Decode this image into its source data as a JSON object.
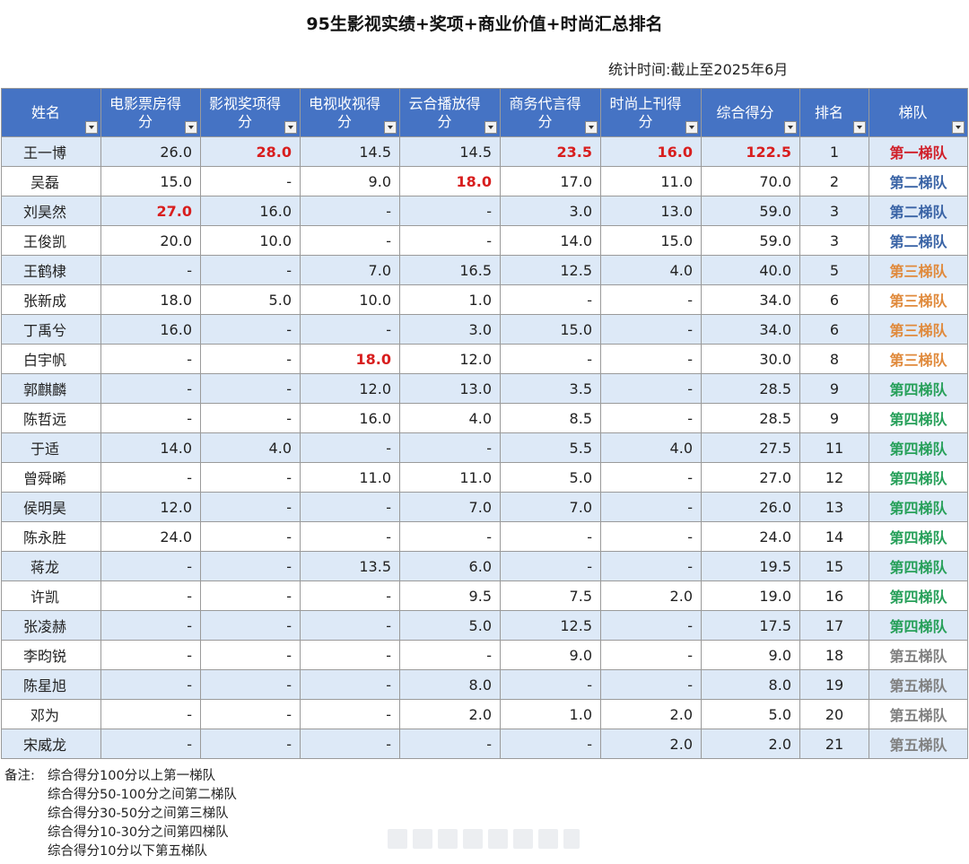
{
  "title": "95生影视实绩+奖项+商业价值+时尚汇总排名",
  "stat_time": "统计时间:截止至2025年6月",
  "headers": [
    "姓名",
    "电影票房得分",
    "影视奖项得分",
    "电视收视得分",
    "云合播放得分",
    "商务代言得分",
    "时尚上刊得分",
    "综合得分",
    "排名",
    "梯队"
  ],
  "colors": {
    "header_bg": "#4573c4",
    "stripe": "#dde9f7",
    "highlight": "#d81e1e",
    "tier1": "#d0202a",
    "tier2": "#3a64a6",
    "tier3": "#e08a3c",
    "tier4": "#27a05a",
    "tier5": "#808080"
  },
  "rows": [
    {
      "name": "王一博",
      "cells": [
        "26.0",
        "28.0",
        "14.5",
        "14.5",
        "23.5",
        "16.0",
        "122.5"
      ],
      "rank": "1",
      "tier": "第一梯队",
      "tier_level": 1,
      "bold": [
        1,
        4,
        5,
        6
      ]
    },
    {
      "name": "吴磊",
      "cells": [
        "15.0",
        "-",
        "9.0",
        "18.0",
        "17.0",
        "11.0",
        "70.0"
      ],
      "rank": "2",
      "tier": "第二梯队",
      "tier_level": 2,
      "bold": [
        3
      ]
    },
    {
      "name": "刘昊然",
      "cells": [
        "27.0",
        "16.0",
        "-",
        "-",
        "3.0",
        "13.0",
        "59.0"
      ],
      "rank": "3",
      "tier": "第二梯队",
      "tier_level": 2,
      "bold": [
        0
      ]
    },
    {
      "name": "王俊凯",
      "cells": [
        "20.0",
        "10.0",
        "-",
        "-",
        "14.0",
        "15.0",
        "59.0"
      ],
      "rank": "3",
      "tier": "第二梯队",
      "tier_level": 2,
      "bold": []
    },
    {
      "name": "王鹤棣",
      "cells": [
        "-",
        "-",
        "7.0",
        "16.5",
        "12.5",
        "4.0",
        "40.0"
      ],
      "rank": "5",
      "tier": "第三梯队",
      "tier_level": 3,
      "bold": []
    },
    {
      "name": "张新成",
      "cells": [
        "18.0",
        "5.0",
        "10.0",
        "1.0",
        "-",
        "-",
        "34.0"
      ],
      "rank": "6",
      "tier": "第三梯队",
      "tier_level": 3,
      "bold": []
    },
    {
      "name": "丁禹兮",
      "cells": [
        "16.0",
        "-",
        "-",
        "3.0",
        "15.0",
        "-",
        "34.0"
      ],
      "rank": "6",
      "tier": "第三梯队",
      "tier_level": 3,
      "bold": []
    },
    {
      "name": "白宇帆",
      "cells": [
        "-",
        "-",
        "18.0",
        "12.0",
        "-",
        "-",
        "30.0"
      ],
      "rank": "8",
      "tier": "第三梯队",
      "tier_level": 3,
      "bold": [
        2
      ]
    },
    {
      "name": "郭麒麟",
      "cells": [
        "-",
        "-",
        "12.0",
        "13.0",
        "3.5",
        "-",
        "28.5"
      ],
      "rank": "9",
      "tier": "第四梯队",
      "tier_level": 4,
      "bold": []
    },
    {
      "name": "陈哲远",
      "cells": [
        "-",
        "-",
        "16.0",
        "4.0",
        "8.5",
        "-",
        "28.5"
      ],
      "rank": "9",
      "tier": "第四梯队",
      "tier_level": 4,
      "bold": []
    },
    {
      "name": "于适",
      "cells": [
        "14.0",
        "4.0",
        "-",
        "-",
        "5.5",
        "4.0",
        "27.5"
      ],
      "rank": "11",
      "tier": "第四梯队",
      "tier_level": 4,
      "bold": []
    },
    {
      "name": "曾舜晞",
      "cells": [
        "-",
        "-",
        "11.0",
        "11.0",
        "5.0",
        "-",
        "27.0"
      ],
      "rank": "12",
      "tier": "第四梯队",
      "tier_level": 4,
      "bold": []
    },
    {
      "name": "侯明昊",
      "cells": [
        "12.0",
        "-",
        "-",
        "7.0",
        "7.0",
        "-",
        "26.0"
      ],
      "rank": "13",
      "tier": "第四梯队",
      "tier_level": 4,
      "bold": []
    },
    {
      "name": "陈永胜",
      "cells": [
        "24.0",
        "-",
        "-",
        "-",
        "-",
        "-",
        "24.0"
      ],
      "rank": "14",
      "tier": "第四梯队",
      "tier_level": 4,
      "bold": []
    },
    {
      "name": "蒋龙",
      "cells": [
        "-",
        "-",
        "13.5",
        "6.0",
        "-",
        "-",
        "19.5"
      ],
      "rank": "15",
      "tier": "第四梯队",
      "tier_level": 4,
      "bold": []
    },
    {
      "name": "许凯",
      "cells": [
        "-",
        "-",
        "-",
        "9.5",
        "7.5",
        "2.0",
        "19.0"
      ],
      "rank": "16",
      "tier": "第四梯队",
      "tier_level": 4,
      "bold": []
    },
    {
      "name": "张凌赫",
      "cells": [
        "-",
        "-",
        "-",
        "5.0",
        "12.5",
        "-",
        "17.5"
      ],
      "rank": "17",
      "tier": "第四梯队",
      "tier_level": 4,
      "bold": []
    },
    {
      "name": "李昀锐",
      "cells": [
        "-",
        "-",
        "-",
        "-",
        "9.0",
        "-",
        "9.0"
      ],
      "rank": "18",
      "tier": "第五梯队",
      "tier_level": 5,
      "bold": []
    },
    {
      "name": "陈星旭",
      "cells": [
        "-",
        "-",
        "-",
        "8.0",
        "-",
        "-",
        "8.0"
      ],
      "rank": "19",
      "tier": "第五梯队",
      "tier_level": 5,
      "bold": []
    },
    {
      "name": "邓为",
      "cells": [
        "-",
        "-",
        "-",
        "2.0",
        "1.0",
        "2.0",
        "5.0"
      ],
      "rank": "20",
      "tier": "第五梯队",
      "tier_level": 5,
      "bold": []
    },
    {
      "name": "宋威龙",
      "cells": [
        "-",
        "-",
        "-",
        "-",
        "-",
        "2.0",
        "2.0"
      ],
      "rank": "21",
      "tier": "第五梯队",
      "tier_level": 5,
      "bold": []
    }
  ],
  "notes": {
    "label": "备注:",
    "items": [
      "综合得分100分以上第一梯队",
      "综合得分50-100分之间第二梯队",
      "综合得分30-50分之间第三梯队",
      "综合得分10-30分之间第四梯队",
      "综合得分10分以下第五梯队"
    ]
  }
}
